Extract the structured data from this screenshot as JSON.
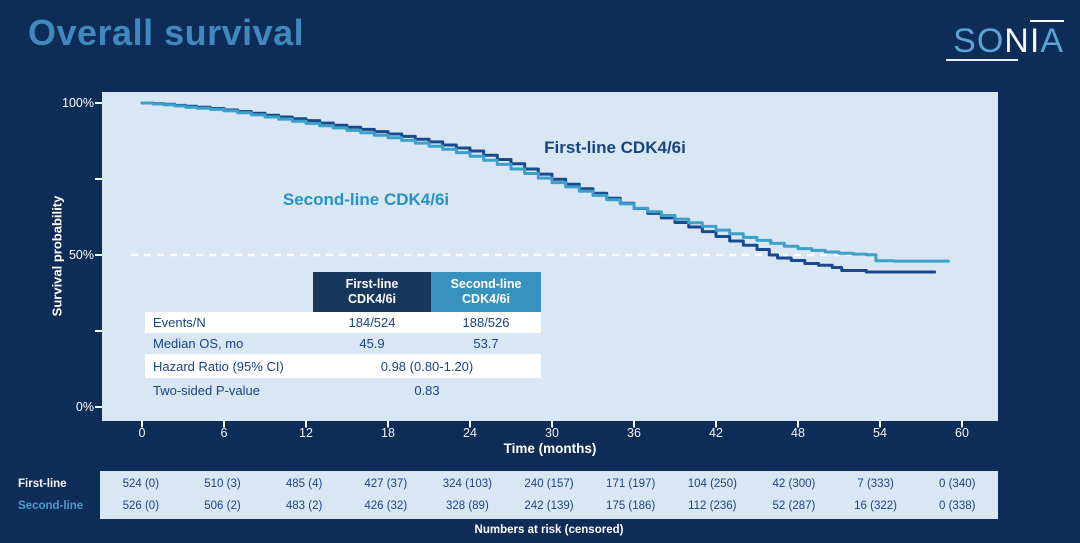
{
  "title": "Overall survival",
  "logo": {
    "part1": "SO",
    "part2": "N",
    "part3": "I",
    "part4": "A"
  },
  "chart_data": {
    "type": "line",
    "subtype": "kaplan-meier-step",
    "title": "Overall survival",
    "xlabel": "Time (months)",
    "ylabel": "Survival probability",
    "x_ticks": [
      "0",
      "6",
      "12",
      "18",
      "24",
      "30",
      "36",
      "42",
      "48",
      "54",
      "60"
    ],
    "x_tick_values": [
      0,
      6,
      12,
      18,
      24,
      30,
      36,
      42,
      48,
      54,
      60
    ],
    "y_ticks": [
      "100%",
      "50%",
      "0%"
    ],
    "y_tick_values_labeled": [
      100,
      50,
      0
    ],
    "y_tick_values_all": [
      100,
      75,
      50,
      25,
      0
    ],
    "xlim": [
      0,
      60
    ],
    "ylim": [
      0,
      100
    ],
    "grid": false,
    "median_rule": {
      "value_pct": 50,
      "style": "dashed-white",
      "from_month": -0.8,
      "to_month": 53.5
    },
    "series": [
      {
        "name": "First-line CDK4/6i",
        "color": "#1a4a8d",
        "points": [
          [
            0,
            100
          ],
          [
            0.8,
            99.8
          ],
          [
            1.6,
            99.6
          ],
          [
            2.4,
            99.2
          ],
          [
            3.2,
            98.9
          ],
          [
            4,
            98.6
          ],
          [
            5,
            98.2
          ],
          [
            6,
            97.7
          ],
          [
            7,
            97.2
          ],
          [
            8,
            96.6
          ],
          [
            9,
            96.0
          ],
          [
            10,
            95.4
          ],
          [
            11,
            94.8
          ],
          [
            12,
            94.2
          ],
          [
            13,
            93.4
          ],
          [
            14,
            92.7
          ],
          [
            15,
            92.0
          ],
          [
            16,
            91.3
          ],
          [
            17,
            90.6
          ],
          [
            18,
            89.8
          ],
          [
            19,
            89.0
          ],
          [
            20,
            88.1
          ],
          [
            21,
            87.2
          ],
          [
            22,
            86.2
          ],
          [
            23,
            85.2
          ],
          [
            24,
            84.2
          ],
          [
            25,
            82.8
          ],
          [
            26,
            81.4
          ],
          [
            27,
            80.0
          ],
          [
            28,
            78.3
          ],
          [
            29,
            76.6
          ],
          [
            30,
            74.9
          ],
          [
            31,
            73.3
          ],
          [
            32,
            71.8
          ],
          [
            33,
            70.3
          ],
          [
            34,
            68.7
          ],
          [
            35,
            67.0
          ],
          [
            36,
            65.3
          ],
          [
            37,
            63.7
          ],
          [
            38,
            62.2
          ],
          [
            39,
            60.7
          ],
          [
            40,
            59.2
          ],
          [
            41,
            57.7
          ],
          [
            42,
            56.1
          ],
          [
            43,
            54.6
          ],
          [
            44,
            53.2
          ],
          [
            45,
            51.8
          ],
          [
            45.9,
            50.0
          ],
          [
            46.5,
            49.0
          ],
          [
            47.5,
            48.2
          ],
          [
            48.5,
            47.2
          ],
          [
            49.5,
            46.6
          ],
          [
            50.5,
            45.9
          ],
          [
            51.2,
            44.9
          ],
          [
            53,
            44.4
          ],
          [
            58,
            44.4
          ]
        ]
      },
      {
        "name": "Second-line CDK4/6i",
        "color": "#3da0c8",
        "points": [
          [
            0,
            100
          ],
          [
            0.8,
            99.7
          ],
          [
            1.6,
            99.4
          ],
          [
            2.4,
            99.0
          ],
          [
            3.2,
            98.6
          ],
          [
            4,
            98.3
          ],
          [
            5,
            97.9
          ],
          [
            6,
            97.4
          ],
          [
            7,
            96.8
          ],
          [
            8,
            96.1
          ],
          [
            9,
            95.4
          ],
          [
            10,
            94.7
          ],
          [
            11,
            94.0
          ],
          [
            12,
            93.3
          ],
          [
            13,
            92.5
          ],
          [
            14,
            91.8
          ],
          [
            15,
            91.0
          ],
          [
            16,
            90.2
          ],
          [
            17,
            89.4
          ],
          [
            18,
            88.6
          ],
          [
            19,
            87.7
          ],
          [
            20,
            86.8
          ],
          [
            21,
            85.8
          ],
          [
            22,
            84.8
          ],
          [
            23,
            83.7
          ],
          [
            24,
            82.5
          ],
          [
            25,
            81.2
          ],
          [
            26,
            79.8
          ],
          [
            27,
            78.3
          ],
          [
            28,
            76.8
          ],
          [
            29,
            75.3
          ],
          [
            30,
            73.8
          ],
          [
            31,
            72.4
          ],
          [
            32,
            71.0
          ],
          [
            33,
            69.6
          ],
          [
            34,
            68.2
          ],
          [
            35,
            66.8
          ],
          [
            36,
            65.4
          ],
          [
            37,
            64.2
          ],
          [
            38,
            63.0
          ],
          [
            39,
            61.8
          ],
          [
            40,
            60.6
          ],
          [
            41,
            59.4
          ],
          [
            42,
            58.2
          ],
          [
            43,
            57.0
          ],
          [
            44,
            55.8
          ],
          [
            45,
            54.8
          ],
          [
            46,
            53.8
          ],
          [
            47,
            52.9
          ],
          [
            48,
            52.1
          ],
          [
            49,
            51.5
          ],
          [
            50,
            51.0
          ],
          [
            51,
            50.6
          ],
          [
            52,
            50.3
          ],
          [
            53,
            50.1
          ],
          [
            53.7,
            48.1
          ],
          [
            55,
            48.0
          ],
          [
            59,
            48.0
          ]
        ]
      }
    ],
    "curve_labels": [
      {
        "text": "First-line CDK4/6i",
        "series": 0
      },
      {
        "text": "Second-line CDK4/6i",
        "series": 1
      }
    ]
  },
  "stats_table": {
    "col_headers": [
      "First-line\nCDK4/6i",
      "Second-line\nCDK4/6i"
    ],
    "rows": [
      {
        "label": "Events/N",
        "values": [
          "184/524",
          "188/526"
        ]
      },
      {
        "label": "Median OS, mo",
        "values": [
          "45.9",
          "53.7"
        ]
      },
      {
        "label": "Hazard Ratio (95% CI)",
        "span_value": "0.98 (0.80-1.20)"
      },
      {
        "label": "Two-sided P-value",
        "span_value": "0.83"
      }
    ]
  },
  "risk_table": {
    "caption": "Numbers at risk (censored)",
    "rows": [
      {
        "label": "First-line",
        "values": [
          "524 (0)",
          "510 (3)",
          "485 (4)",
          "427 (37)",
          "324 (103)",
          "240 (157)",
          "171 (197)",
          "104 (250)",
          "42 (300)",
          "7 (333)",
          "0 (340)"
        ]
      },
      {
        "label": "Second-line",
        "values": [
          "526 (0)",
          "506 (2)",
          "483 (2)",
          "426 (32)",
          "328 (89)",
          "242 (139)",
          "175 (186)",
          "112 (236)",
          "52 (287)",
          "16 (322)",
          "0 (338)"
        ]
      }
    ]
  },
  "colors": {
    "background": "#0e2c58",
    "plot_background": "#d9e6f4",
    "title": "#4189bc",
    "first_line": "#1a4a8d",
    "second_line": "#3da0c8",
    "header_navy": "#17375e",
    "header_teal": "#3992bd",
    "table_text": "#1b4385"
  }
}
